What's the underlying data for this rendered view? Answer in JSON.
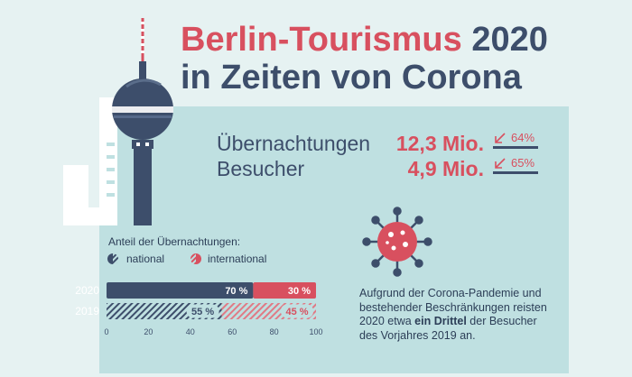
{
  "title": {
    "part1": "Berlin-Tourismus",
    "part2": "2020",
    "line2": "in Zeiten von Corona"
  },
  "stats": [
    {
      "label": "Übernachtungen",
      "value": "12,3 Mio.",
      "change": "64%"
    },
    {
      "label": "Besucher",
      "value": "4,9 Mio.",
      "change": "65%"
    }
  ],
  "colors": {
    "navy": "#3d4e6b",
    "red": "#d8505f",
    "panel": "#bfe0e1",
    "background": "#e6f2f2"
  },
  "icons": [
    "tv-tower-illustration",
    "virus-icon",
    "arrow-down-left-icon",
    "half-circle-icon"
  ],
  "description": {
    "before": "Aufgrund der Corona-Pandemie und bestehender Beschränkungen reisten 2020 etwa ",
    "bold": "ein Drittel",
    "after": " der Besucher des Vorjahres 2019 an."
  },
  "chart_data": {
    "type": "bar",
    "stacked": true,
    "orientation": "horizontal",
    "title": "Anteil der Übernachtungen:",
    "categories": [
      "2020",
      "2019"
    ],
    "series": [
      {
        "name": "national",
        "values": [
          70,
          55
        ],
        "labels": [
          "70 %",
          "55 %"
        ]
      },
      {
        "name": "international",
        "values": [
          30,
          45
        ],
        "labels": [
          "30 %",
          "45 %"
        ]
      }
    ],
    "xlim": [
      0,
      100
    ],
    "xticks": [
      0,
      20,
      40,
      60,
      80,
      100
    ],
    "xtick_labels": [
      "0",
      "20",
      "40",
      "60",
      "80",
      "100"
    ],
    "legend_position": "top-left"
  }
}
